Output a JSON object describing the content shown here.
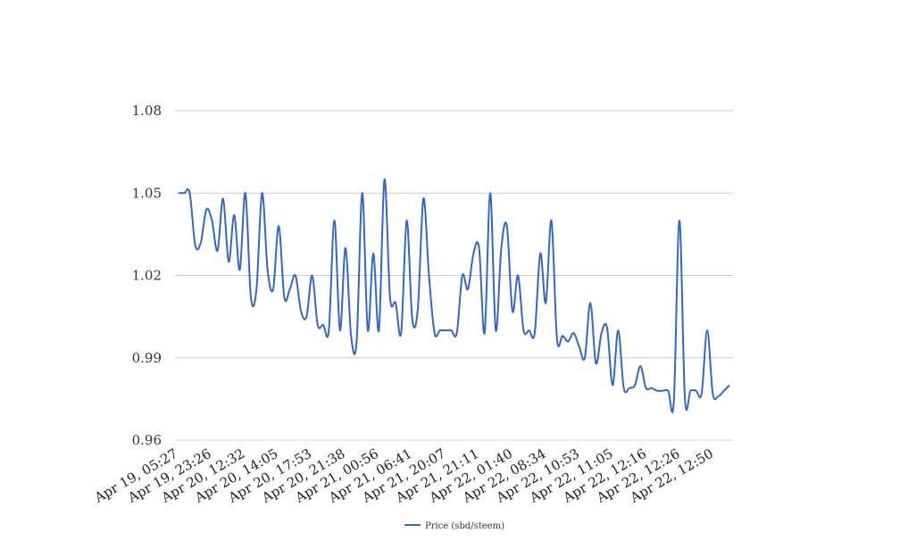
{
  "chart_data": {
    "type": "line",
    "title": "",
    "xlabel": "",
    "ylabel": "",
    "ylim": [
      0.96,
      1.08
    ],
    "y_ticks": [
      "0.96",
      "0.99",
      "1.02",
      "1.05",
      "1.08"
    ],
    "x_tick_labels": [
      "Apr 19, 05:27",
      "Apr 19, 23:26",
      "Apr 20, 12:32",
      "Apr 20, 14:05",
      "Apr 20, 17:53",
      "Apr 20, 21:38",
      "Apr 21, 00:56",
      "Apr 21, 06:41",
      "Apr 21, 20:07",
      "Apr 21, 21:11",
      "Apr 22, 01:40",
      "Apr 22, 08:34",
      "Apr 22, 10:53",
      "Apr 22, 11:05",
      "Apr 22, 12:16",
      "Apr 22, 12:26",
      "Apr 22, 12:50"
    ],
    "grid": "horizontal",
    "legend_position": "bottom",
    "colors": {
      "series": "#3366cc",
      "grid": "#cccccc"
    },
    "series": [
      {
        "name": "Price (sbd/steem)",
        "values": [
          1.05,
          1.05,
          1.05,
          1.031,
          1.032,
          1.044,
          1.04,
          1.029,
          1.048,
          1.025,
          1.042,
          1.022,
          1.05,
          1.012,
          1.015,
          1.05,
          1.022,
          1.015,
          1.038,
          1.012,
          1.015,
          1.02,
          1.007,
          1.005,
          1.02,
          1.002,
          1.002,
          1.0,
          1.04,
          1.0,
          1.03,
          0.998,
          0.996,
          1.05,
          1.0,
          1.028,
          1.0,
          1.055,
          1.012,
          1.01,
          0.999,
          1.04,
          1.004,
          1.008,
          1.048,
          1.02,
          0.999,
          1.0,
          1.0,
          1.0,
          0.999,
          1.02,
          1.015,
          1.028,
          1.03,
          0.999,
          1.05,
          1.0,
          1.03,
          1.038,
          1.007,
          1.02,
          1.0,
          1.0,
          0.999,
          1.028,
          1.01,
          1.04,
          0.997,
          0.998,
          0.996,
          0.999,
          0.994,
          0.99,
          1.01,
          0.988,
          0.999,
          1.001,
          0.98,
          1.0,
          0.979,
          0.979,
          0.98,
          0.987,
          0.979,
          0.979,
          0.978,
          0.978,
          0.978,
          0.974,
          1.04,
          0.975,
          0.978,
          0.978,
          0.977,
          1.0,
          0.977,
          0.976,
          0.978,
          0.98
        ]
      }
    ]
  }
}
